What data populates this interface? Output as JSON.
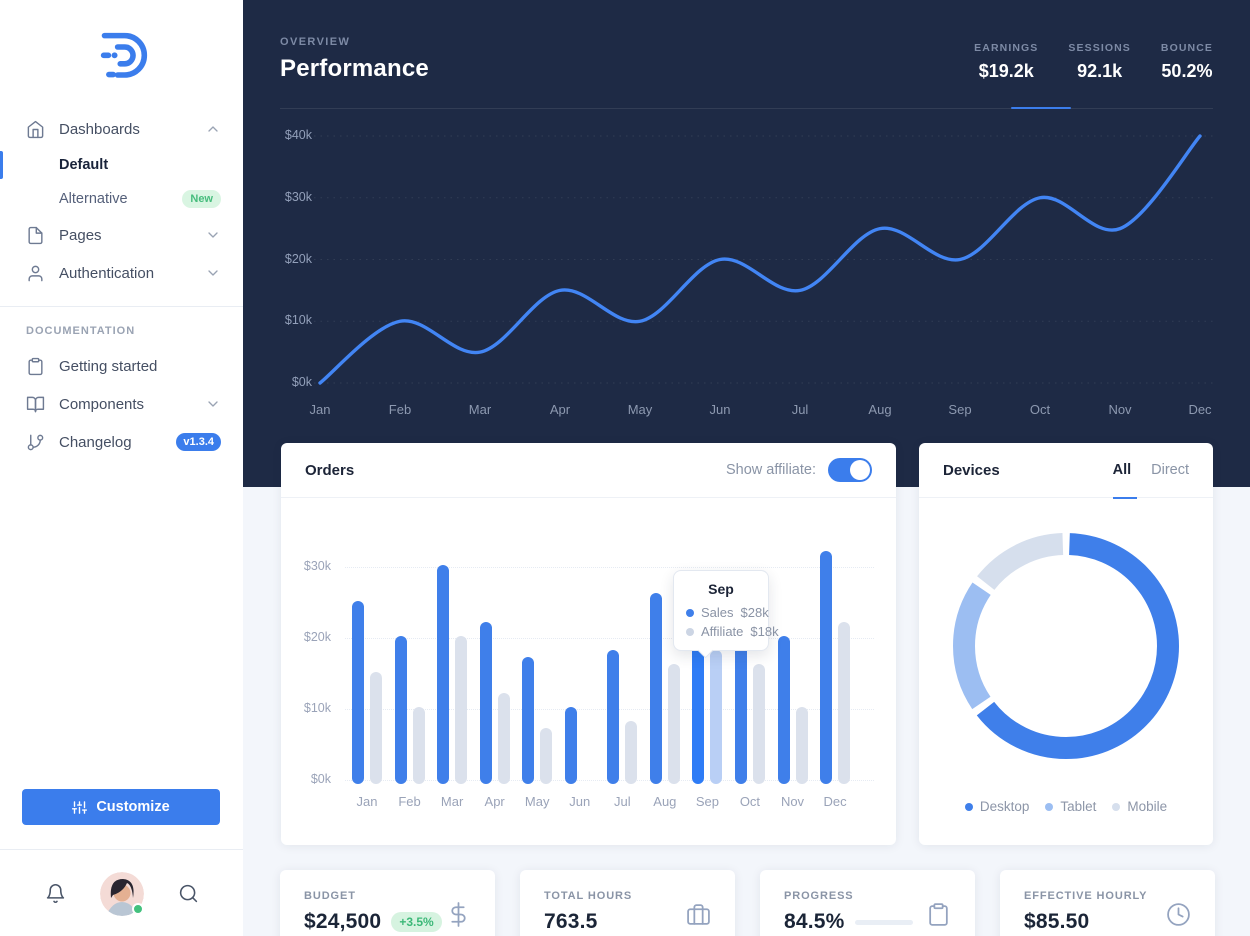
{
  "sidebar": {
    "dashboards_label": "Dashboards",
    "default_label": "Default",
    "alternative_label": "Alternative",
    "alternative_badge": "New",
    "pages_label": "Pages",
    "authentication_label": "Authentication",
    "documentation_heading": "DOCUMENTATION",
    "getting_started_label": "Getting started",
    "components_label": "Components",
    "changelog_label": "Changelog",
    "changelog_badge": "v1.3.4",
    "customize_label": "Customize"
  },
  "header": {
    "eyebrow": "OVERVIEW",
    "title": "Performance",
    "stats": [
      {
        "label": "EARNINGS",
        "value": "$19.2k",
        "active": true
      },
      {
        "label": "SESSIONS",
        "value": "92.1k",
        "active": false
      },
      {
        "label": "BOUNCE",
        "value": "50.2%",
        "active": false
      }
    ]
  },
  "orders": {
    "title": "Orders",
    "toggle_label": "Show affiliate:",
    "toggle_state": "on",
    "tooltip": {
      "title": "Sep",
      "rows": [
        {
          "name": "Sales",
          "value": "$28k"
        },
        {
          "name": "Affiliate",
          "value": "$18k"
        }
      ]
    }
  },
  "devices": {
    "title": "Devices",
    "tab_all": "All",
    "tab_direct": "Direct",
    "active_tab": "All",
    "legend": [
      {
        "label": "Desktop"
      },
      {
        "label": "Tablet"
      },
      {
        "label": "Mobile"
      }
    ]
  },
  "stat_cards": [
    {
      "label": "BUDGET",
      "value": "$24,500",
      "badge": "+3.5%"
    },
    {
      "label": "TOTAL HOURS",
      "value": "763.5"
    },
    {
      "label": "PROGRESS",
      "value": "84.5%",
      "progress_pct": 84.5
    },
    {
      "label": "EFFECTIVE HOURLY",
      "value": "$85.50"
    }
  ],
  "chart_data": [
    {
      "id": "performance-line",
      "type": "line",
      "title": "Performance",
      "x": [
        "Jan",
        "Feb",
        "Mar",
        "Apr",
        "May",
        "Jun",
        "Jul",
        "Aug",
        "Sep",
        "Oct",
        "Nov",
        "Dec"
      ],
      "series": [
        {
          "name": "Earnings",
          "values": [
            0,
            10,
            5,
            15,
            10,
            20,
            15,
            25,
            20,
            30,
            25,
            40
          ]
        }
      ],
      "ytick_labels": [
        "$0k",
        "$10k",
        "$20k",
        "$30k",
        "$40k"
      ],
      "yticks": [
        0,
        10,
        20,
        30,
        40
      ],
      "ylim": [
        0,
        40
      ],
      "grid": "horizontal-dotted",
      "legend_position": "none",
      "line_color": "#4285f4"
    },
    {
      "id": "orders-bars",
      "type": "bar",
      "title": "Orders",
      "categories": [
        "Jan",
        "Feb",
        "Mar",
        "Apr",
        "May",
        "Jun",
        "Jul",
        "Aug",
        "Sep",
        "Oct",
        "Nov",
        "Dec"
      ],
      "series": [
        {
          "name": "Sales",
          "values": [
            25,
            20,
            30,
            22,
            17,
            10,
            18,
            26,
            28,
            25,
            20,
            32
          ],
          "color": "#3f7fea"
        },
        {
          "name": "Affiliate",
          "values": [
            15,
            10,
            20,
            12,
            7,
            0,
            8,
            16,
            18,
            16,
            10,
            22
          ],
          "color": "#dbe1ec"
        }
      ],
      "highlight_index": 8,
      "highlight_colors": [
        "#2e7cf6",
        "#b9cff5"
      ],
      "ytick_labels": [
        "$0k",
        "$10k",
        "$20k",
        "$30k"
      ],
      "yticks": [
        0,
        10,
        20,
        30
      ],
      "ylim": [
        0,
        33
      ],
      "grid": "horizontal-dotted"
    },
    {
      "id": "devices-donut",
      "type": "pie",
      "title": "Devices",
      "labels": [
        "Desktop",
        "Tablet",
        "Mobile"
      ],
      "values": [
        65,
        20,
        15
      ],
      "colors": [
        "#3f7fea",
        "#9cbef2",
        "#d6dfed"
      ],
      "donut": true,
      "legend_position": "bottom"
    }
  ],
  "colors": {
    "primary": "#3b7dec",
    "navy_panel": "#1e2a45",
    "success": "#43c17e",
    "muted_text": "#8a94a6",
    "light_bar": "#dbe1ec",
    "background": "#f3f6fb"
  }
}
